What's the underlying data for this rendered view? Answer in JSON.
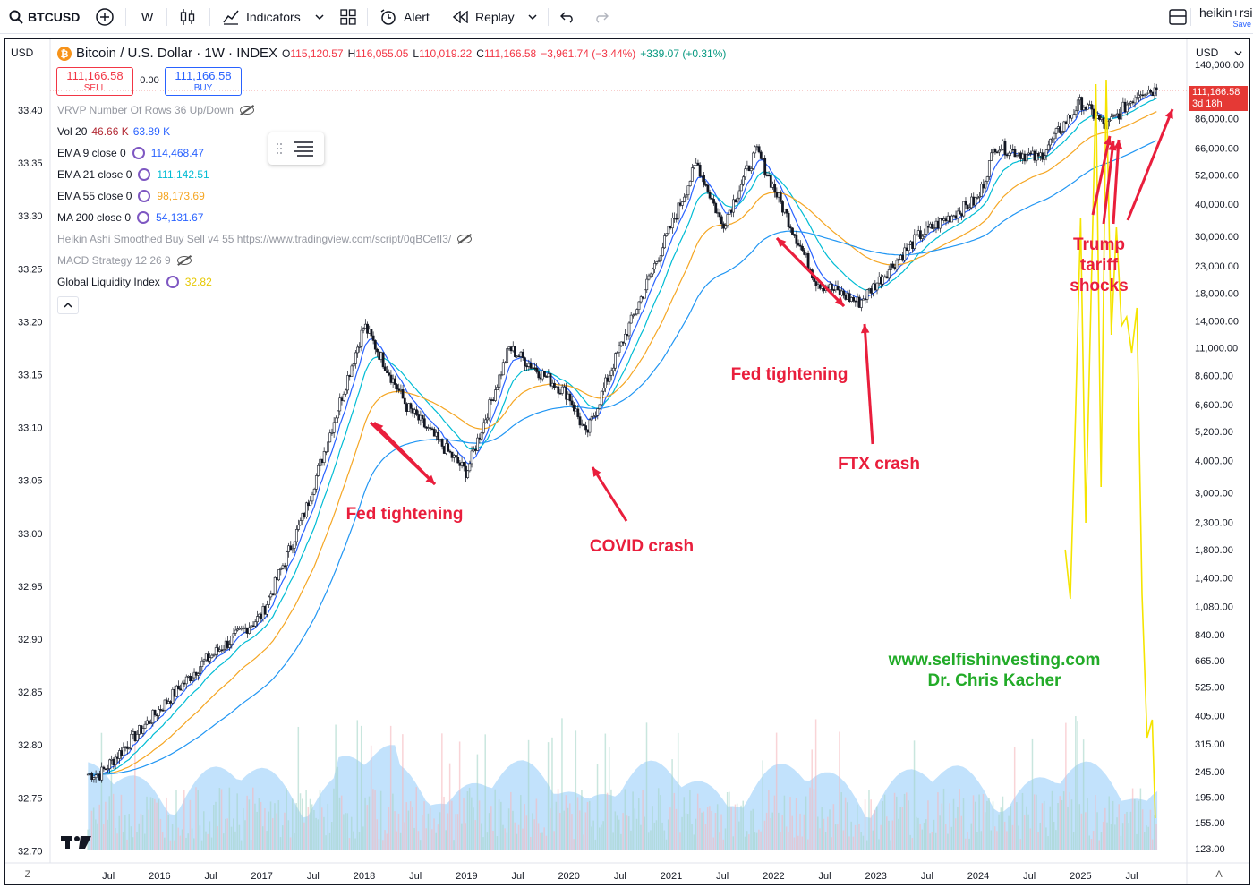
{
  "toolbar": {
    "symbol": "BTCUSD",
    "interval": "W",
    "indicators_label": "Indicators",
    "alert_label": "Alert",
    "replay_label": "Replay",
    "layout_name": "heikin+rsi",
    "layout_status": "Save"
  },
  "legend": {
    "title": "Bitcoin / U.S. Dollar · 1W · INDEX",
    "ohlc": [
      {
        "label": "O",
        "value": "115,120.57"
      },
      {
        "label": "H",
        "value": "116,055.05"
      },
      {
        "label": "L",
        "value": "110,019.22"
      },
      {
        "label": "C",
        "value": "111,166.58"
      }
    ],
    "change": "−3,961.74 (−3.44%)",
    "extra_change": "+339.07 (+0.31%)",
    "sell_price": "111,166.58",
    "sell_label": "SELL",
    "spread": "0.00",
    "buy_price": "111,166.58",
    "buy_label": "BUY",
    "studies": [
      {
        "name": "VRVP Number Of Rows 36 Up/Down",
        "values": [],
        "icon": "hidden-eye-icon",
        "muted": true
      },
      {
        "name": "Vol 20",
        "values": [
          {
            "v": "46.66 K",
            "color": "#b22833"
          },
          {
            "v": "63.89 K",
            "color": "#2962ff"
          }
        ]
      },
      {
        "name": "EMA 9 close 0",
        "values": [
          {
            "v": "114,468.47",
            "color": "#2962ff"
          }
        ],
        "icon": "settings-icon"
      },
      {
        "name": "EMA 21 close 0",
        "values": [
          {
            "v": "111,142.51",
            "color": "#00bcd4"
          }
        ],
        "icon": "settings-icon"
      },
      {
        "name": "EMA 55 close 0",
        "values": [
          {
            "v": "98,173.69",
            "color": "#f5a623"
          }
        ],
        "icon": "settings-icon"
      },
      {
        "name": "MA 200 close 0",
        "values": [
          {
            "v": "54,131.67",
            "color": "#2962ff"
          }
        ],
        "icon": "settings-icon"
      },
      {
        "name": "Heikin Ashi Smoothed Buy Sell v4 55 https://www.tradingview.com/script/0qBCefI3/",
        "values": [],
        "icon": "hidden-eye-icon",
        "muted": true
      },
      {
        "name": "MACD Strategy 12 26 9",
        "values": [],
        "icon": "hidden-eye-icon",
        "muted": true
      },
      {
        "name": "Global Liquidity Index",
        "values": [
          {
            "v": "32.82",
            "color": "#f5e400"
          }
        ],
        "icon": "settings-icon"
      }
    ]
  },
  "left_axis": {
    "currency": "USD",
    "ticks": [
      "33.40",
      "33.35",
      "33.30",
      "33.25",
      "33.20",
      "33.15",
      "33.10",
      "33.05",
      "33.00",
      "32.95",
      "32.90",
      "32.85",
      "32.80",
      "32.75",
      "32.70"
    ]
  },
  "right_axis": {
    "currency": "USD",
    "ticks": [
      "140,000.00",
      "86,000.00",
      "66,000.00",
      "52,000.00",
      "40,000.00",
      "30,000.00",
      "23,000.00",
      "18,000.00",
      "14,000.00",
      "11,000.00",
      "8,600.00",
      "6,600.00",
      "5,200.00",
      "4,000.00",
      "3,000.00",
      "2,300.00",
      "1,800.00",
      "1,400.00",
      "1,080.00",
      "840.00",
      "665.00",
      "525.00",
      "405.00",
      "315.00",
      "245.00",
      "195.00",
      "155.00",
      "123.00"
    ],
    "last_price": "111,166.58",
    "countdown": "3d 18h",
    "last_price_color": "#e53935"
  },
  "time_axis": {
    "labels": [
      "Jul",
      "2016",
      "Jul",
      "2017",
      "Jul",
      "2018",
      "Jul",
      "2019",
      "Jul",
      "2020",
      "Jul",
      "2021",
      "Jul",
      "2022",
      "Jul",
      "2023",
      "Jul",
      "2024",
      "Jul",
      "2025",
      "Jul"
    ],
    "left_mode": "Z",
    "right_mode": "A"
  },
  "annotations": [
    {
      "text": "Fed tightening"
    },
    {
      "text": "COVID crash"
    },
    {
      "text": "Fed tightening"
    },
    {
      "text": "FTX crash"
    },
    {
      "text": "Trump tariff shocks"
    }
  ],
  "watermark": {
    "site": "www.selfishinvesting.com",
    "author": "Dr. Chris Kacher"
  },
  "logo": "TV",
  "colors": {
    "up": "#089981",
    "down": "#f23645",
    "ema9": "#2962ff",
    "ema21": "#00bcd4",
    "ema55": "#f5a623",
    "ma200": "#2196f3",
    "liquidity": "#f5e400",
    "volume_profile": "#90caf9",
    "annotation": "#e91e3c",
    "watermark": "#22ab28"
  },
  "chart_data": {
    "type": "candlestick",
    "title": "Bitcoin / U.S. Dollar · 1W · INDEX",
    "x": [
      "2015-06",
      "2016-01",
      "2016-06",
      "2017-01",
      "2017-06",
      "2018-01",
      "2018-06",
      "2019-01",
      "2019-06",
      "2020-01",
      "2020-03",
      "2020-06",
      "2021-01",
      "2021-04",
      "2021-07",
      "2021-11",
      "2022-06",
      "2022-11",
      "2023-06",
      "2024-01",
      "2024-03",
      "2024-08",
      "2025-01",
      "2025-04",
      "2025-08"
    ],
    "close": [
      240,
      430,
      650,
      1000,
      2500,
      13500,
      6500,
      3600,
      11000,
      7200,
      5000,
      9200,
      33000,
      58000,
      33000,
      65000,
      20000,
      16500,
      30000,
      42000,
      68000,
      60000,
      100000,
      80000,
      111166.58
    ],
    "yscale": "log",
    "ylim": [
      123,
      140000
    ],
    "series": [
      {
        "name": "EMA 9 close 0",
        "last": 114468.47
      },
      {
        "name": "EMA 21 close 0",
        "last": 111142.51
      },
      {
        "name": "EMA 55 close 0",
        "last": 98173.69
      },
      {
        "name": "MA 200 close 0",
        "last": 54131.67
      }
    ],
    "secondary_series": {
      "name": "Global Liquidity Index",
      "last": 32.82,
      "ylim": [
        32.7,
        33.4
      ]
    },
    "grid": false,
    "legend_position": "top-left"
  }
}
